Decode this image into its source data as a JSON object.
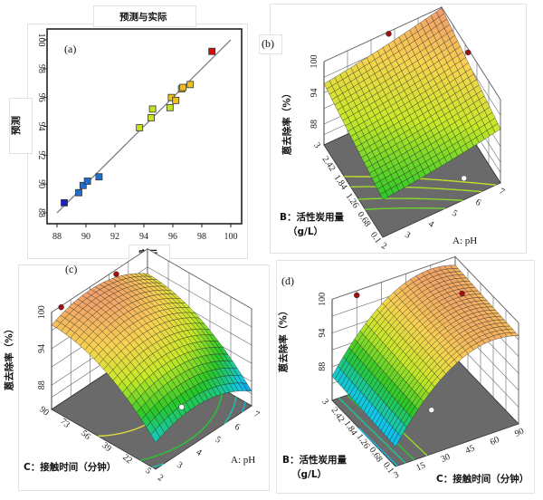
{
  "chart_data": [
    {
      "panel": "(a)",
      "type": "scatter",
      "title": "预测与实际",
      "xlabel": "实际",
      "ylabel": "预测",
      "xlim": [
        87.5,
        100.5
      ],
      "ylim": [
        87.5,
        100.8
      ],
      "xticks": [
        "88",
        "90",
        "92",
        "94",
        "96",
        "98",
        "100"
      ],
      "yticks": [
        "88",
        "90",
        "92",
        "94",
        "96",
        "98",
        "100"
      ],
      "reference_line": {
        "from": [
          88,
          88
        ],
        "to": [
          100,
          100
        ],
        "color": "#808080"
      },
      "grid": false,
      "points": [
        {
          "actual": 88.5,
          "predicted": 88.7
        },
        {
          "actual": 89.5,
          "predicted": 89.4
        },
        {
          "actual": 89.8,
          "predicted": 89.9
        },
        {
          "actual": 90.1,
          "predicted": 90.2
        },
        {
          "actual": 90.9,
          "predicted": 90.5
        },
        {
          "actual": 93.7,
          "predicted": 93.9
        },
        {
          "actual": 94.5,
          "predicted": 94.6
        },
        {
          "actual": 94.6,
          "predicted": 95.2
        },
        {
          "actual": 95.8,
          "predicted": 95.3
        },
        {
          "actual": 95.9,
          "predicted": 96.0
        },
        {
          "actual": 96.2,
          "predicted": 95.8
        },
        {
          "actual": 96.6,
          "predicted": 96.6
        },
        {
          "actual": 96.7,
          "predicted": 96.7
        },
        {
          "actual": 97.2,
          "predicted": 96.9
        },
        {
          "actual": 98.7,
          "predicted": 99.2
        }
      ],
      "color_scale": [
        "#2020c0",
        "#1e6fd0",
        "#20c8d8",
        "#30c030",
        "#c8e020",
        "#f0c020",
        "#e08020",
        "#d01010"
      ]
    },
    {
      "panel": "(b)",
      "type": "surface3d",
      "xlabel": "A: pH",
      "ylabel": "B：活性炭用量",
      "ylabel_unit": "（g/L）",
      "zlabel": "蒽去除率（%）",
      "xticks": [
        "2",
        "3",
        "4",
        "5",
        "6",
        "7"
      ],
      "yticks": [
        "0.1",
        "0.68",
        "1.26",
        "1.84",
        "2.42",
        "3"
      ],
      "zticks": [
        "88",
        "94",
        "100"
      ],
      "zlim": [
        84,
        100
      ]
    },
    {
      "panel": "(c)",
      "type": "surface3d",
      "xlabel": "A: pH",
      "ylabel": "C：接触时间（分钟）",
      "zlabel": "蒽去除率（%）",
      "xticks": [
        "2",
        "3",
        "4",
        "5",
        "6",
        "7"
      ],
      "yticks": [
        "5",
        "22",
        "39",
        "56",
        "73",
        "90"
      ],
      "zticks": [
        "88",
        "94",
        "100"
      ],
      "zlim": [
        84,
        100
      ]
    },
    {
      "panel": "(d)",
      "type": "surface3d",
      "xlabel": "C：接触时间（分钟）",
      "ylabel": "B：活性炭用量",
      "ylabel_unit": "（g/L）",
      "zlabel": "蒽去除率（%）",
      "xticks": [
        "3",
        "15",
        "30",
        "45",
        "60",
        "90"
      ],
      "yticks": [
        "0.1",
        "0.68",
        "1.26",
        "1.84",
        "2.42",
        "3"
      ],
      "zticks": [
        "88",
        "94",
        "100"
      ],
      "zlim": [
        82,
        100
      ]
    }
  ],
  "colors": {
    "floor": "#6a6a6a",
    "design_point": "#a01010",
    "surface_low": "#1030e0",
    "surface_high": "#f0a070"
  }
}
